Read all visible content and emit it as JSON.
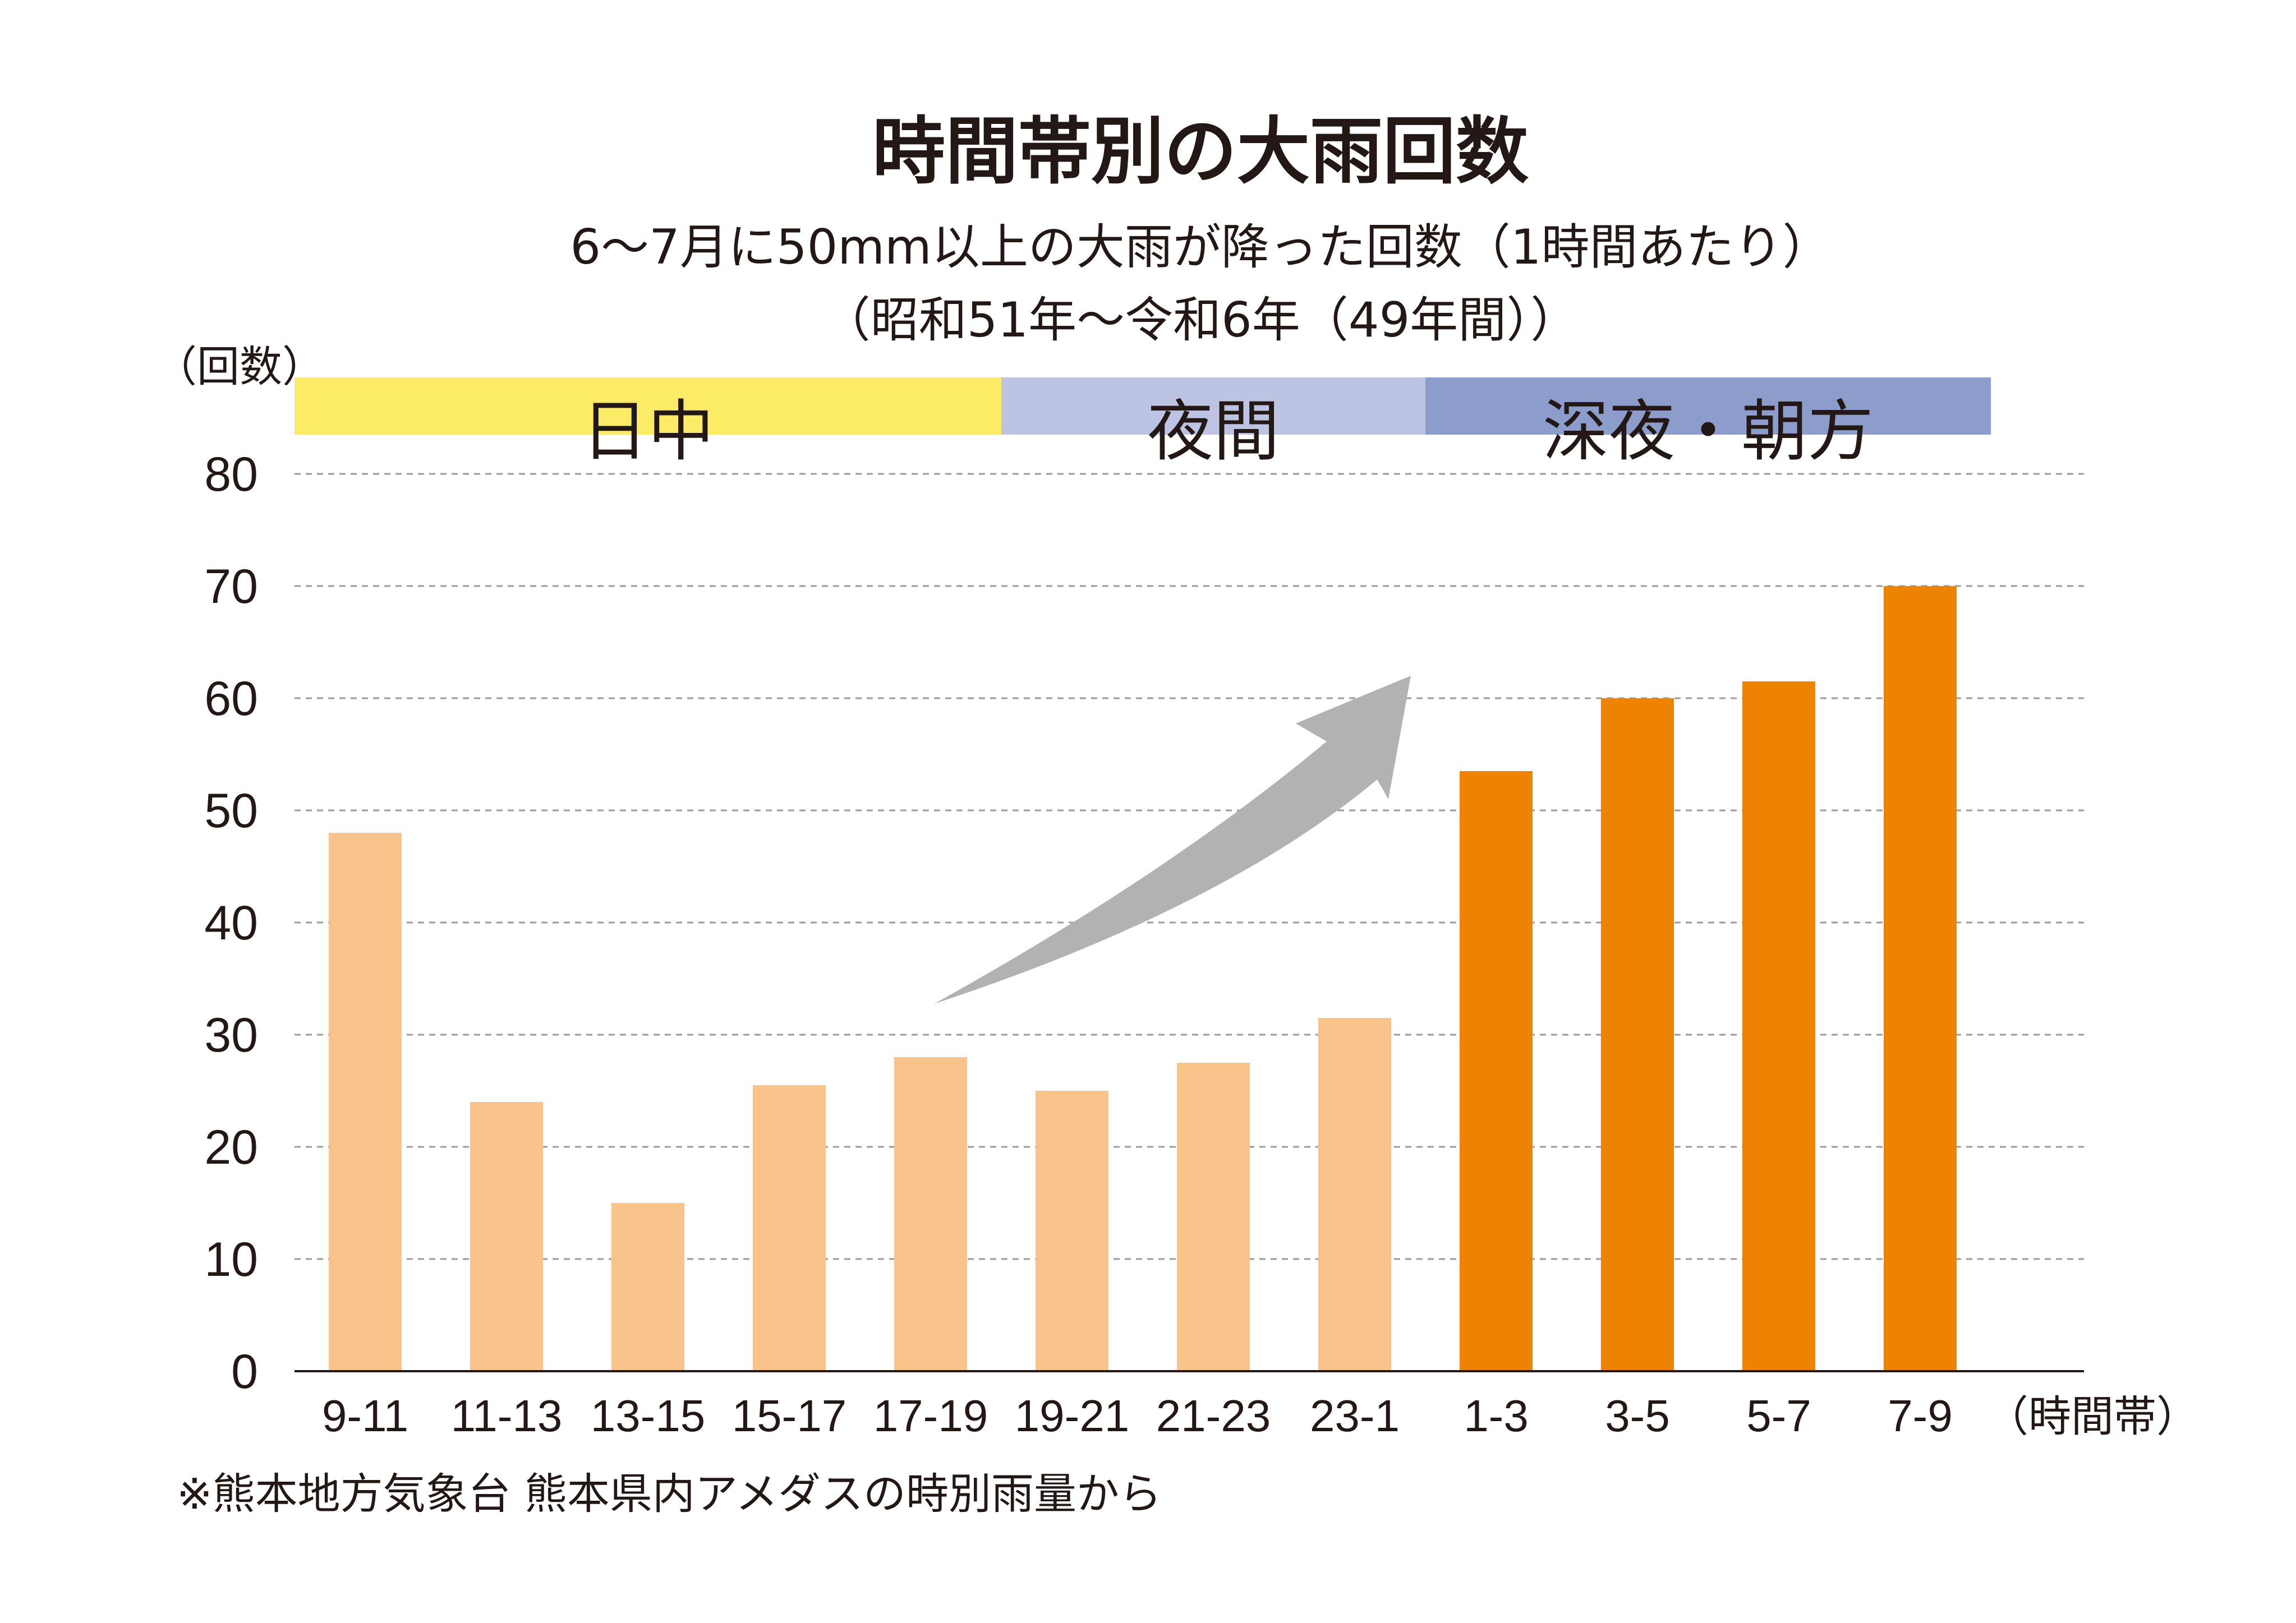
{
  "chart_data": {
    "type": "bar",
    "title": "時間帯別の大雨回数",
    "subtitle_line1": "6～7月に50mm以上の大雨が降った回数（1時間あたり）",
    "subtitle_line2": "（昭和51年～令和6年（49年間））",
    "ylabel": "（回数）",
    "xlabel": "（時間帯）",
    "ylim": [
      0,
      80
    ],
    "yticks": [
      0,
      10,
      20,
      30,
      40,
      50,
      60,
      70,
      80
    ],
    "grid": true,
    "categories": [
      "9-11",
      "11-13",
      "13-15",
      "15-17",
      "17-19",
      "19-21",
      "21-23",
      "23-1",
      "1-3",
      "3-5",
      "5-7",
      "7-9"
    ],
    "values": [
      48,
      24,
      15,
      25.5,
      28,
      25,
      27.5,
      31.5,
      53.5,
      60,
      61.5,
      70
    ],
    "bar_colors": [
      "#f8c48c",
      "#f8c48c",
      "#f8c48c",
      "#f8c48c",
      "#f8c48c",
      "#f8c48c",
      "#f8c48c",
      "#f8c48c",
      "#ed8203",
      "#ed8203",
      "#ed8203",
      "#ed8203"
    ],
    "bands": [
      {
        "label": "日中",
        "from": 0,
        "to": 5,
        "color": "#fceb67"
      },
      {
        "label": "夜間",
        "from": 5,
        "to": 8,
        "color": "#bcc3e3"
      },
      {
        "label": "深夜・朝方",
        "from": 8,
        "to": 12,
        "color": "#8c9dcc"
      }
    ],
    "annotation": "upward-trend-arrow",
    "arrow_color": "#b2b2b2",
    "source_note": "※熊本地方気象台 熊本県内アメダスの時別雨量から"
  }
}
